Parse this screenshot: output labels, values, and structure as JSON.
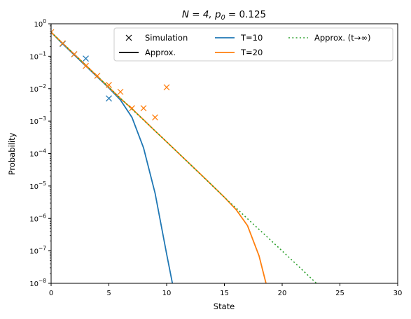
{
  "chart_data": {
    "type": "line",
    "title_main": "N = 4, p",
    "title_sub": "0",
    "title_rest": " = 0.125",
    "xlabel": "State",
    "ylabel": "Probability",
    "xlim": [
      0,
      30
    ],
    "ylim_log10": [
      -8,
      0
    ],
    "yscale": "log",
    "x_ticks": [
      0,
      5,
      10,
      15,
      20,
      25,
      30
    ],
    "y_ticks_exp": [
      -8,
      -7,
      -6,
      -5,
      -4,
      -3,
      -2,
      -1,
      0
    ],
    "grid": false,
    "legend_placement": "top-right",
    "legend": [
      {
        "label": "Simulation",
        "marker": "x",
        "color": "#000000"
      },
      {
        "label": "Approx.",
        "style": "solid",
        "color": "#000000"
      },
      {
        "label": "T=10",
        "style": "solid",
        "color": "#1f77b4"
      },
      {
        "label": "T=20",
        "style": "solid",
        "color": "#ff7f0e"
      },
      {
        "label": "Approx. (t→∞)",
        "style": "dotted",
        "color": "#2ca02c"
      }
    ],
    "series": [
      {
        "name": "T=10",
        "kind": "line",
        "color": "#1f77b4",
        "x": [
          0,
          1,
          2,
          3,
          4,
          5,
          6,
          7,
          8,
          9,
          10,
          10.5
        ],
        "y": [
          0.55,
          0.24,
          0.11,
          0.05,
          0.023,
          0.0105,
          0.0045,
          0.0013,
          0.00015,
          6e-06,
          8e-08,
          1e-08
        ]
      },
      {
        "name": "T=20",
        "kind": "line",
        "color": "#ff7f0e",
        "x": [
          0,
          1,
          2,
          3,
          4,
          5,
          6,
          7,
          8,
          9,
          10,
          11,
          12,
          13,
          14,
          15,
          16,
          17,
          18,
          18.6
        ],
        "y": [
          0.55,
          0.25,
          0.115,
          0.053,
          0.024,
          0.011,
          0.005,
          0.0024,
          0.0011,
          0.0005,
          0.00023,
          0.000105,
          4.8e-05,
          2.2e-05,
          1e-05,
          4.5e-06,
          1.9e-06,
          6e-07,
          7e-08,
          1e-08
        ]
      },
      {
        "name": "Approx. (t→∞)",
        "kind": "line",
        "style": "dotted",
        "color": "#2ca02c",
        "x": [
          0,
          5,
          10,
          15,
          20,
          24
        ],
        "y": [
          0.55,
          0.011,
          0.00023,
          4.5e-06,
          1e-07,
          4.5e-09
        ]
      },
      {
        "name": "Simulation T=10",
        "kind": "marker",
        "marker": "x",
        "color": "#1f77b4",
        "x": [
          1,
          2,
          3,
          5
        ],
        "y": [
          0.24,
          0.115,
          0.085,
          0.005
        ]
      },
      {
        "name": "Simulation T=20",
        "kind": "marker",
        "marker": "x",
        "color": "#ff7f0e",
        "x": [
          0,
          1,
          2,
          3,
          4,
          5,
          6,
          7,
          8,
          9,
          10
        ],
        "y": [
          0.55,
          0.25,
          0.115,
          0.05,
          0.025,
          0.013,
          0.008,
          0.0025,
          0.0025,
          0.0013,
          0.011
        ]
      }
    ]
  }
}
